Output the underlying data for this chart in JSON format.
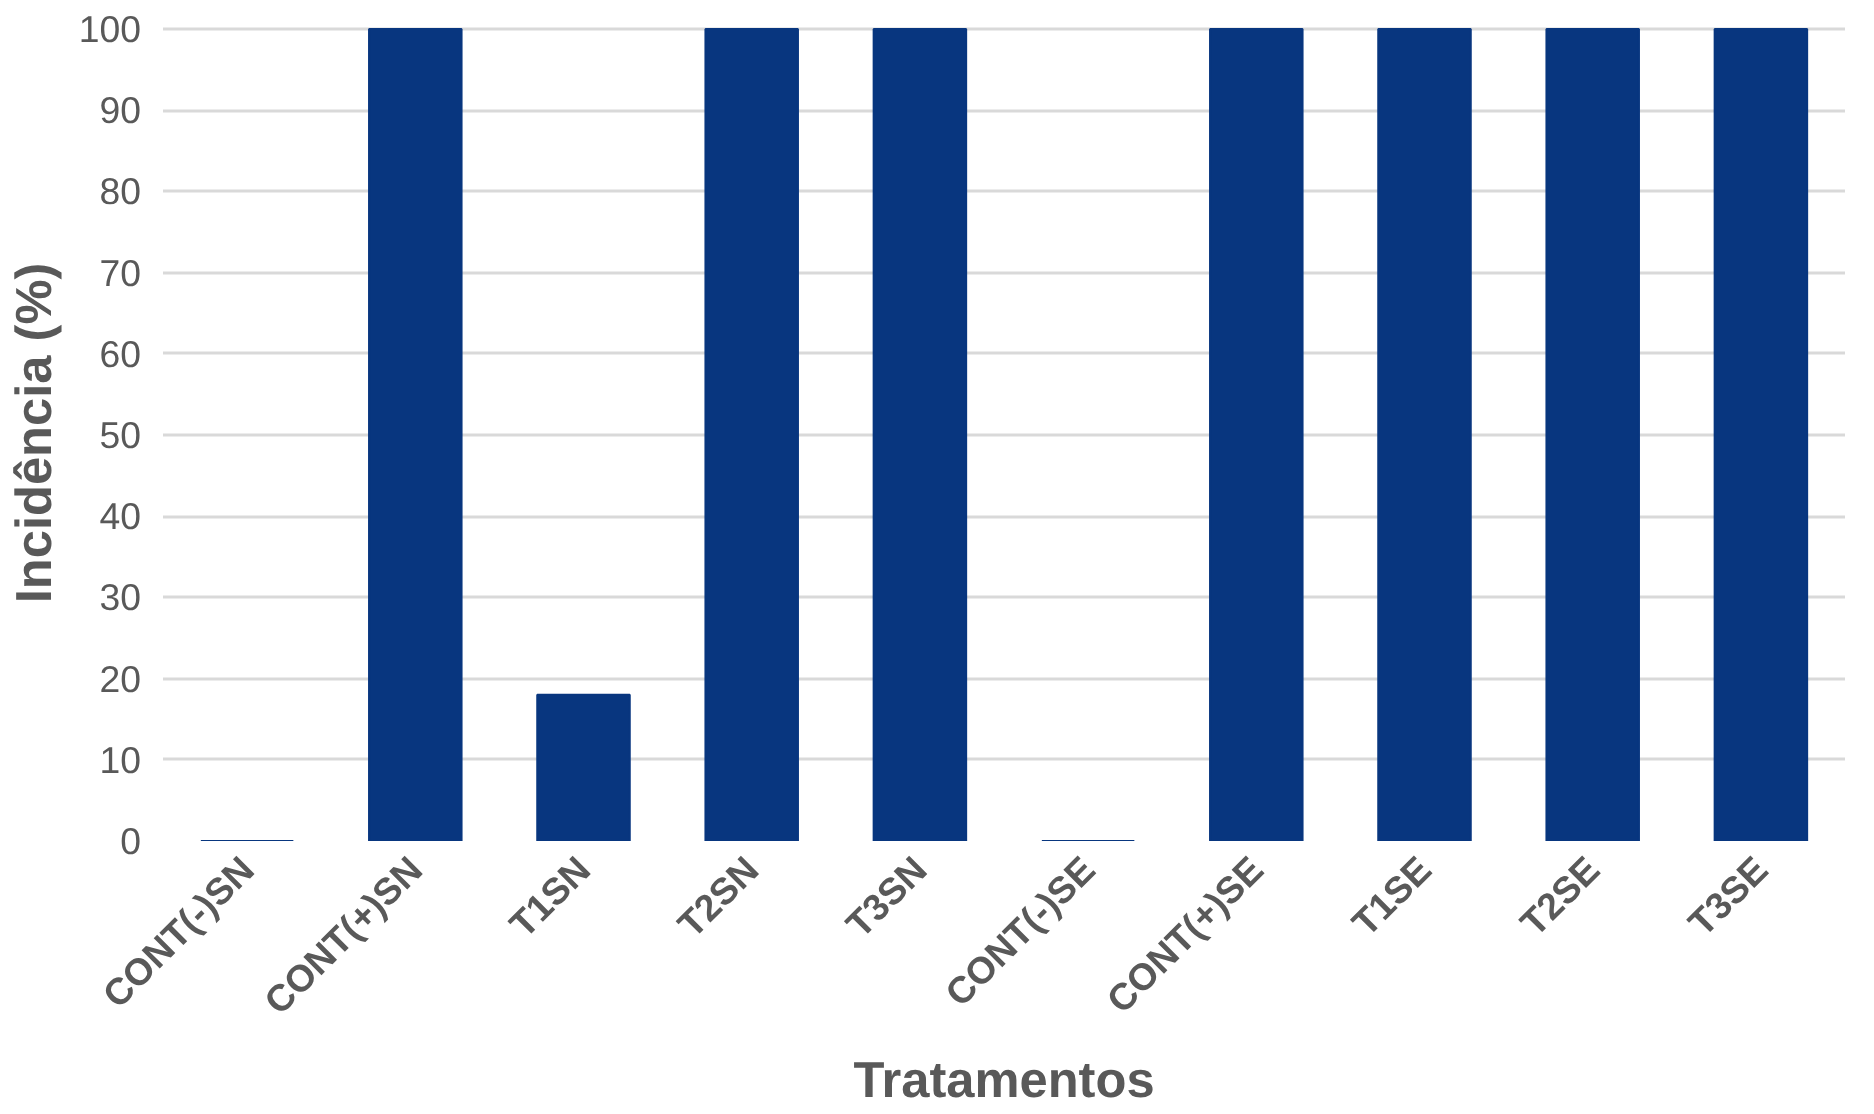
{
  "chart_data": {
    "type": "bar",
    "xlabel": "Tratamentos",
    "ylabel": "Incidência (%)",
    "categories": [
      "CONT(-)SN",
      "CONT(+)SN",
      "T1SN",
      "T2SN",
      "T3SN",
      "CONT(-)SE",
      "CONT(+)SE",
      "T1SE",
      "T2SE",
      "T3SE"
    ],
    "values": [
      0,
      100,
      18,
      100,
      100,
      0,
      100,
      100,
      100,
      100
    ],
    "color": "#08367f",
    "ylim": [
      0,
      100
    ],
    "yticks": [
      0,
      10,
      20,
      30,
      40,
      50,
      60,
      70,
      80,
      90,
      100
    ],
    "grid": "y"
  }
}
